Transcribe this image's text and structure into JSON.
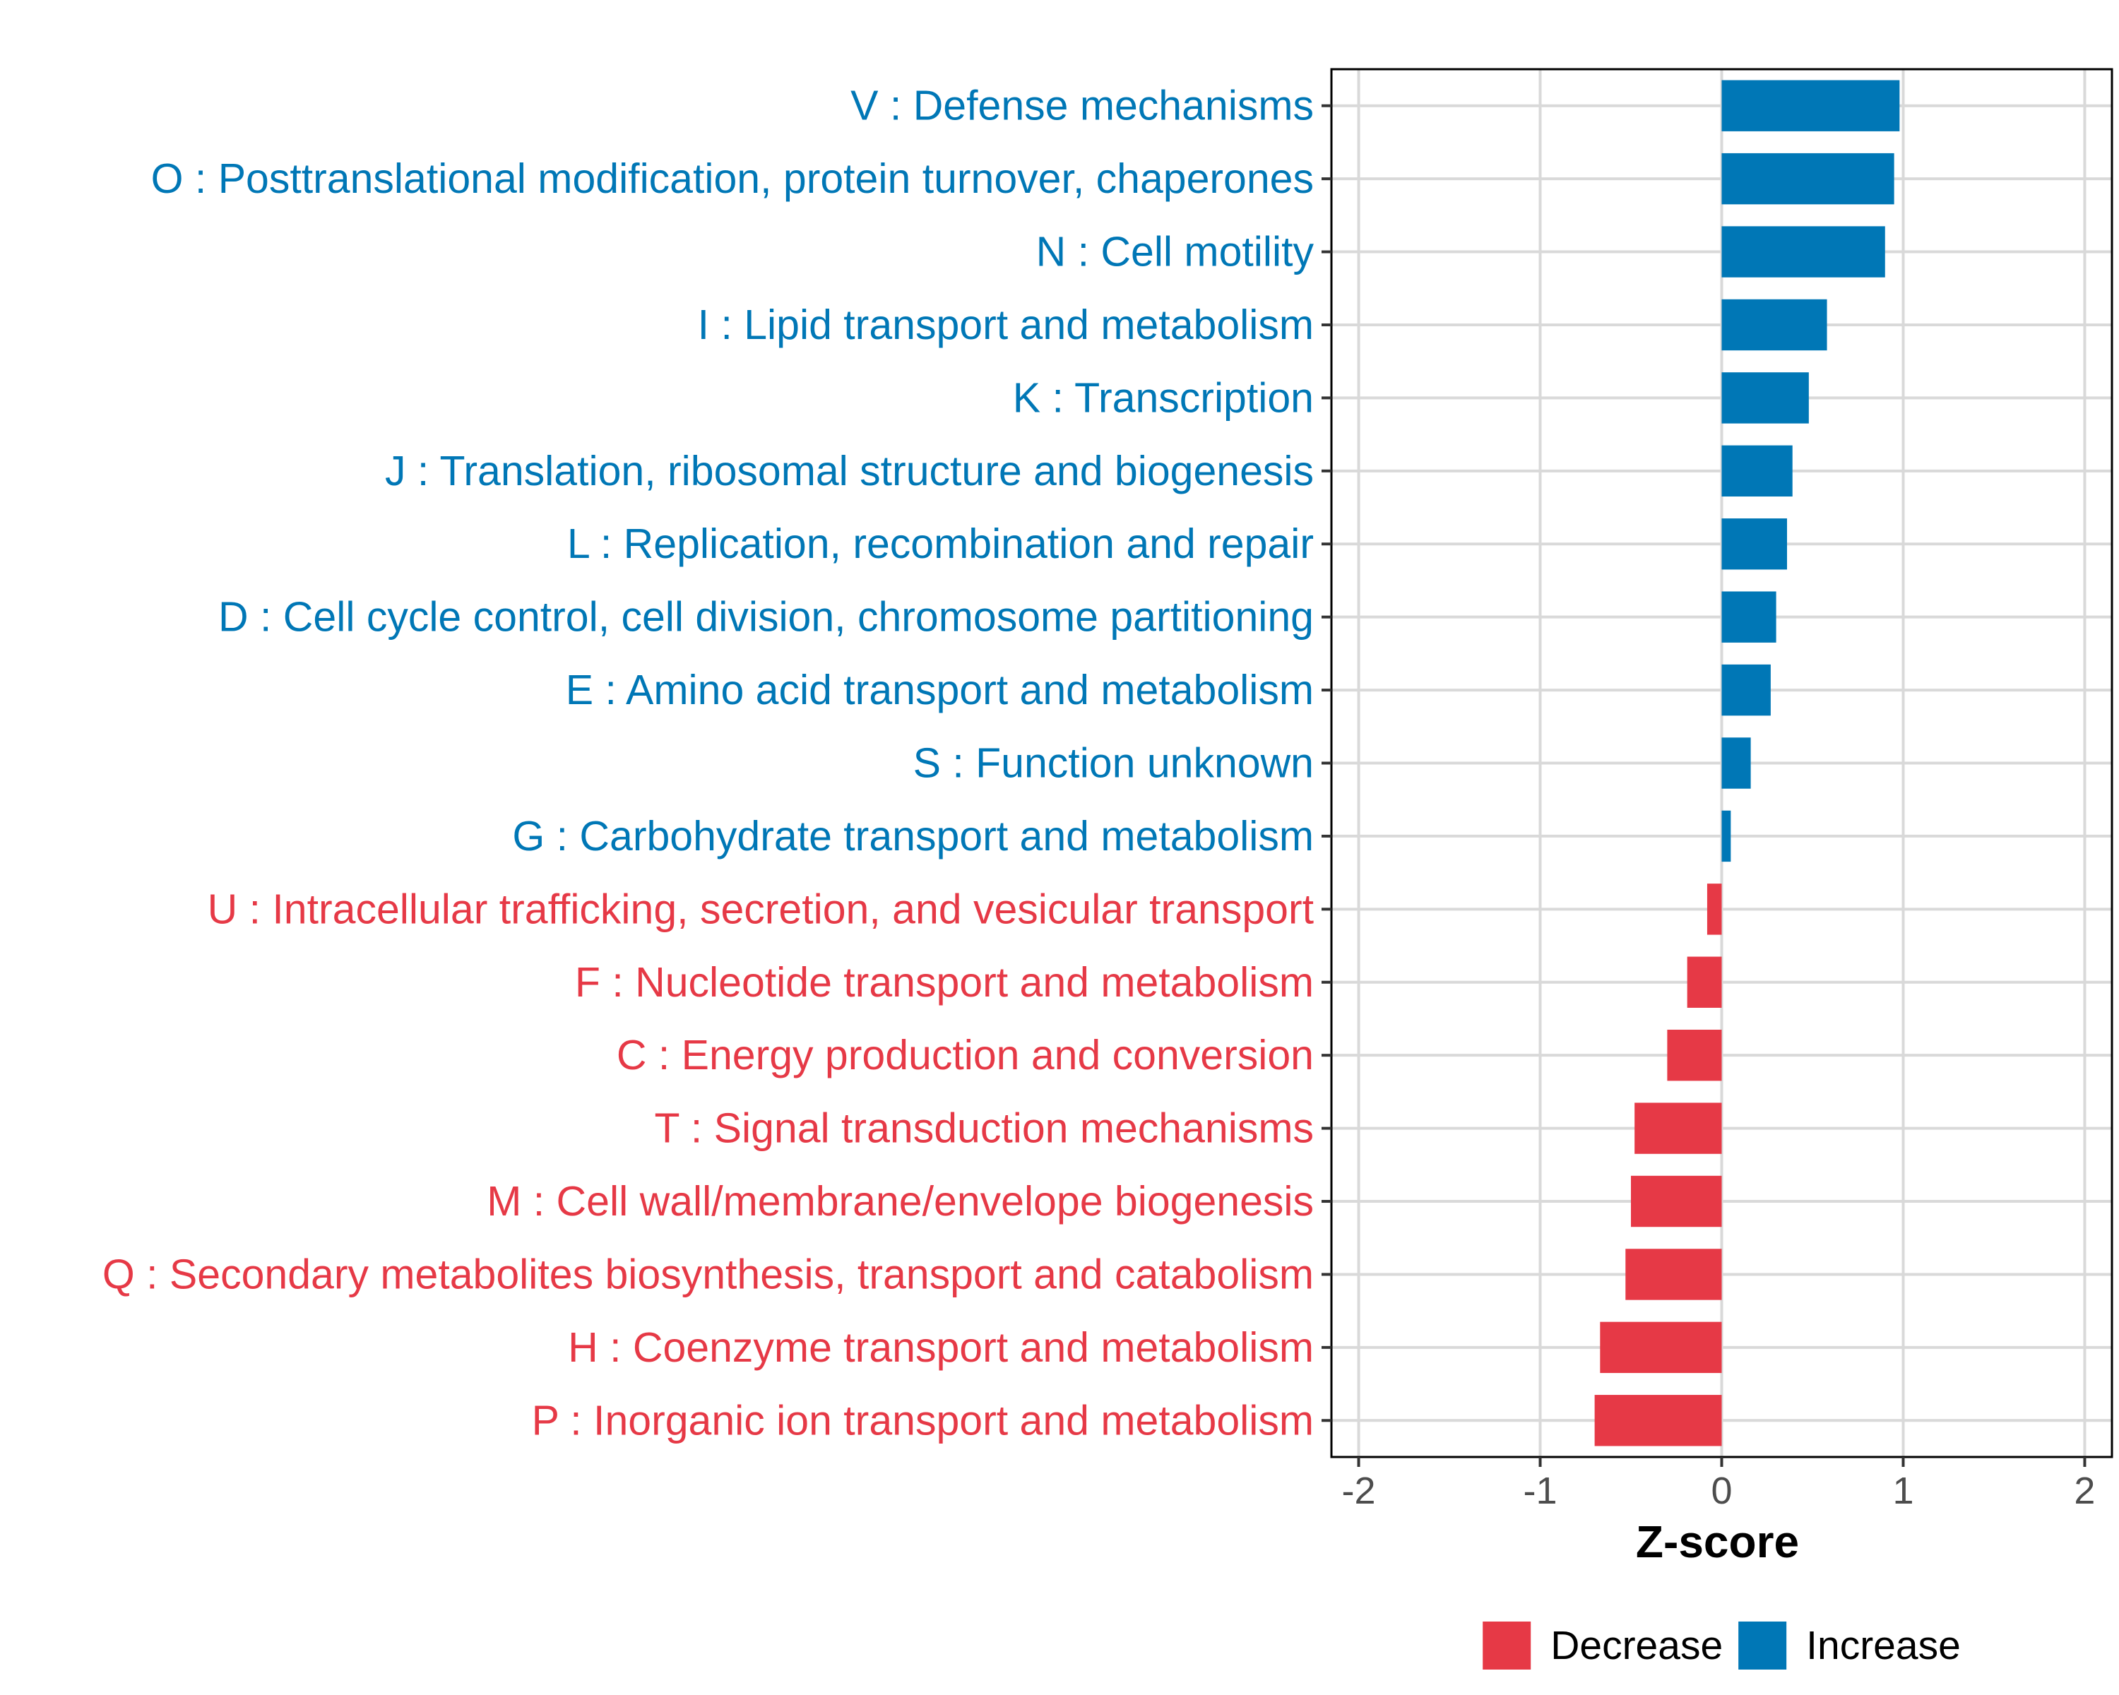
{
  "chart_data": {
    "type": "bar",
    "orientation": "horizontal",
    "title": "",
    "xlabel": "Z-score",
    "ylabel": "",
    "xlim": [
      -2.15,
      2.15
    ],
    "xticks": [
      -2,
      -1,
      0,
      1,
      2
    ],
    "xtick_labels": [
      "-2",
      "-1",
      "0",
      "1",
      "2"
    ],
    "grid": true,
    "categories": [
      "V : Defense mechanisms",
      "O : Posttranslational modification, protein turnover, chaperones",
      "N : Cell motility",
      "I : Lipid transport and metabolism",
      "K : Transcription",
      "J : Translation, ribosomal structure and biogenesis",
      "L : Replication, recombination and repair",
      "D : Cell cycle control, cell division, chromosome partitioning",
      "E : Amino acid transport and metabolism",
      "S : Function unknown",
      "G : Carbohydrate transport and metabolism",
      "U : Intracellular trafficking, secretion, and vesicular transport",
      "F : Nucleotide transport and metabolism",
      "C : Energy production and conversion",
      "T : Signal transduction mechanisms",
      "M : Cell wall/membrane/envelope biogenesis",
      "Q : Secondary metabolites biosynthesis, transport and catabolism",
      "H : Coenzyme transport and metabolism",
      "P : Inorganic ion transport and metabolism"
    ],
    "values": [
      0.98,
      0.95,
      0.9,
      0.58,
      0.48,
      0.39,
      0.36,
      0.3,
      0.27,
      0.16,
      0.05,
      -0.08,
      -0.19,
      -0.3,
      -0.48,
      -0.5,
      -0.53,
      -0.67,
      -0.7
    ],
    "groups": [
      "Increase",
      "Increase",
      "Increase",
      "Increase",
      "Increase",
      "Increase",
      "Increase",
      "Increase",
      "Increase",
      "Increase",
      "Increase",
      "Decrease",
      "Decrease",
      "Decrease",
      "Decrease",
      "Decrease",
      "Decrease",
      "Decrease",
      "Decrease"
    ],
    "legend": [
      {
        "name": "Decrease",
        "color": "#E63946"
      },
      {
        "name": "Increase",
        "color": "#0077B6"
      }
    ],
    "legend_position": "bottom",
    "colors": {
      "Increase": "#0077B6",
      "Decrease": "#E63946"
    }
  }
}
